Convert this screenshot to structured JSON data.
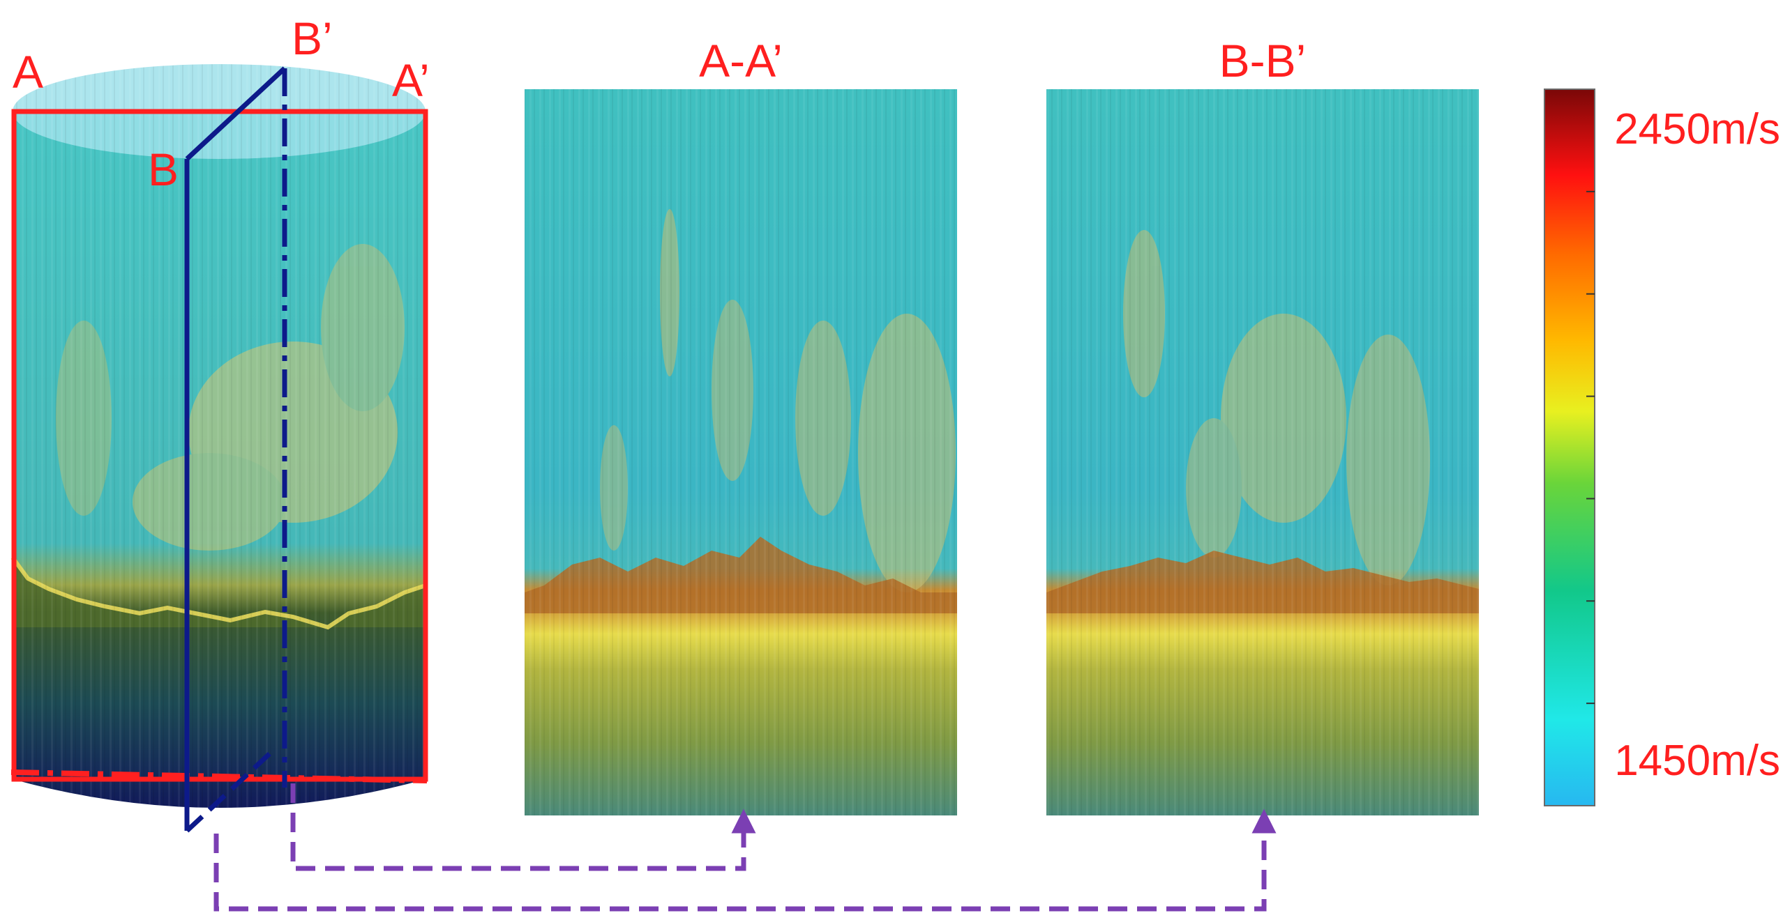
{
  "figure": {
    "cylinder": {
      "labels": {
        "A": "A",
        "A_prime": "A’",
        "B": "B",
        "B_prime": "B’"
      }
    },
    "panels": [
      {
        "id": "aa",
        "title": "A-A’"
      },
      {
        "id": "bb",
        "title": "B-B’"
      }
    ],
    "colorbar": {
      "max_label": "2450m/s",
      "min_label": "1450m/s",
      "ticks": 6
    },
    "colors": {
      "label_red": "#ff1f1f",
      "section_red": "#ff2020",
      "section_navy": "#0d1a8a",
      "arrow_purple": "#7b3fb3",
      "background_cyan": "#3fbcc0",
      "interface_yellow": "#e3d84a",
      "interface_orange": "#c98a2a",
      "lower_olive": "#8c9a3a"
    }
  }
}
